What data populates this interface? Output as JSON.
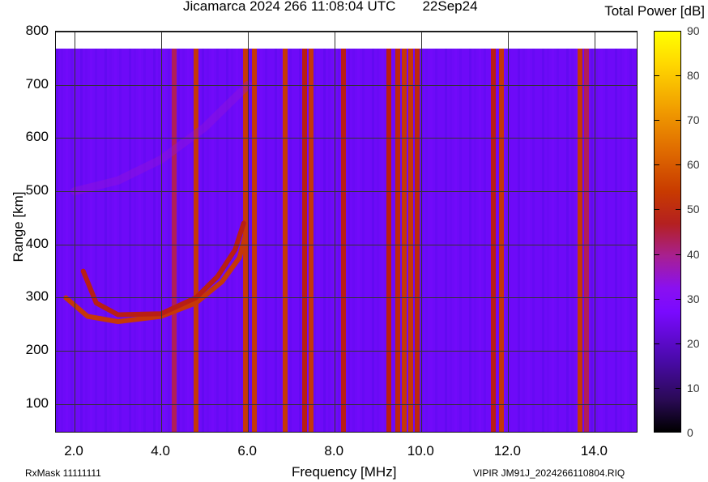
{
  "chart_data": {
    "type": "heatmap",
    "title": "Jicamarca 2024 266 11:08:04 UTC",
    "date_label": "22Sep24",
    "xlabel": "Frequency [MHz]",
    "ylabel": "Range [km]",
    "colorbar_label": "Total Power [dB]",
    "x_ticks": [
      "2.0",
      "4.0",
      "6.0",
      "8.0",
      "10.0",
      "12.0",
      "14.0"
    ],
    "y_ticks": [
      "100",
      "200",
      "300",
      "400",
      "500",
      "600",
      "700",
      "800"
    ],
    "colorbar_ticks": [
      "0",
      "10",
      "20",
      "30",
      "40",
      "50",
      "60",
      "70",
      "80",
      "90"
    ],
    "xlim": [
      1.57,
      15.0
    ],
    "ylim": [
      45,
      800
    ],
    "data_range_top_km": 768,
    "zlim": [
      0,
      90
    ],
    "background_power_db": 25,
    "grid": true,
    "colormap": "black-purple-red-orange-yellow",
    "interference_bands_mhz": [
      {
        "freq": 4.3,
        "db": 45
      },
      {
        "freq": 4.8,
        "db": 55
      },
      {
        "freq": 5.95,
        "db": 55
      },
      {
        "freq": 6.15,
        "db": 55
      },
      {
        "freq": 6.85,
        "db": 55
      },
      {
        "freq": 7.3,
        "db": 50
      },
      {
        "freq": 7.45,
        "db": 55
      },
      {
        "freq": 8.2,
        "db": 50
      },
      {
        "freq": 9.25,
        "db": 50
      },
      {
        "freq": 9.45,
        "db": 52
      },
      {
        "freq": 9.6,
        "db": 55
      },
      {
        "freq": 9.75,
        "db": 55
      },
      {
        "freq": 9.9,
        "db": 52
      },
      {
        "freq": 11.65,
        "db": 50
      },
      {
        "freq": 11.85,
        "db": 55
      },
      {
        "freq": 13.65,
        "db": 55
      },
      {
        "freq": 13.8,
        "db": 45
      }
    ],
    "echo_traces": [
      {
        "name": "O-trace",
        "points": [
          [
            1.8,
            300
          ],
          [
            2.3,
            265
          ],
          [
            3.0,
            255
          ],
          [
            4.0,
            265
          ],
          [
            4.8,
            290
          ],
          [
            5.4,
            330
          ],
          [
            5.8,
            375
          ],
          [
            5.95,
            420
          ]
        ],
        "db": 55
      },
      {
        "name": "X-trace",
        "points": [
          [
            2.2,
            350
          ],
          [
            2.5,
            290
          ],
          [
            3.0,
            268
          ],
          [
            4.0,
            270
          ],
          [
            4.8,
            300
          ],
          [
            5.3,
            340
          ],
          [
            5.7,
            390
          ],
          [
            5.9,
            440
          ]
        ],
        "db": 50
      },
      {
        "name": "multihop-echo",
        "points": [
          [
            2.0,
            500
          ],
          [
            3.0,
            520
          ],
          [
            4.0,
            560
          ],
          [
            5.0,
            620
          ],
          [
            6.0,
            700
          ]
        ],
        "db": 35
      }
    ]
  },
  "footer": {
    "rxmask": "RxMask 11111111",
    "filename": "VIPIR  JM91J_2024266110804.RIQ"
  }
}
